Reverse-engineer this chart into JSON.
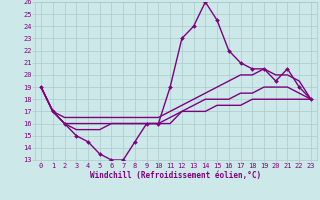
{
  "xlabel": "Windchill (Refroidissement éolien,°C)",
  "x": [
    0,
    1,
    2,
    3,
    4,
    5,
    6,
    7,
    8,
    9,
    10,
    11,
    12,
    13,
    14,
    15,
    16,
    17,
    18,
    19,
    20,
    21,
    22,
    23
  ],
  "lines": [
    {
      "y": [
        19,
        17,
        16,
        15,
        14.5,
        13.5,
        13,
        13,
        14.5,
        16,
        16,
        19,
        23,
        24,
        26,
        24.5,
        22,
        21,
        20.5,
        20.5,
        19.5,
        20.5,
        19,
        18
      ],
      "color": "#800080",
      "marker": "D",
      "markersize": 2.0,
      "linewidth": 1.0,
      "zorder": 5
    },
    {
      "y": [
        19,
        17,
        16.5,
        16.5,
        16.5,
        16.5,
        16.5,
        16.5,
        16.5,
        16.5,
        16.5,
        17,
        17.5,
        18,
        18.5,
        19,
        19.5,
        20,
        20,
        20.5,
        20,
        20,
        19.5,
        18
      ],
      "color": "#800080",
      "marker": null,
      "markersize": 0,
      "linewidth": 1.0,
      "zorder": 4
    },
    {
      "y": [
        19,
        17,
        16,
        15.5,
        15.5,
        15.5,
        16,
        16,
        16,
        16,
        16,
        16.5,
        17,
        17.5,
        18,
        18,
        18,
        18.5,
        18.5,
        19,
        19,
        19,
        18.5,
        18
      ],
      "color": "#800080",
      "marker": null,
      "markersize": 0,
      "linewidth": 1.0,
      "zorder": 3
    },
    {
      "y": [
        19,
        17,
        16,
        16,
        16,
        16,
        16,
        16,
        16,
        16,
        16,
        16,
        17,
        17,
        17,
        17.5,
        17.5,
        17.5,
        18,
        18,
        18,
        18,
        18,
        18
      ],
      "color": "#800080",
      "marker": null,
      "markersize": 0,
      "linewidth": 1.0,
      "zorder": 2
    }
  ],
  "ylim": [
    13,
    26
  ],
  "xlim": [
    -0.5,
    23.5
  ],
  "yticks": [
    13,
    14,
    15,
    16,
    17,
    18,
    19,
    20,
    21,
    22,
    23,
    24,
    25,
    26
  ],
  "xticks": [
    0,
    1,
    2,
    3,
    4,
    5,
    6,
    7,
    8,
    9,
    10,
    11,
    12,
    13,
    14,
    15,
    16,
    17,
    18,
    19,
    20,
    21,
    22,
    23
  ],
  "bg_color": "#cce8e8",
  "grid_color": "#aacccc",
  "line_color": "#800080",
  "tick_color": "#800080",
  "xlabel_fontsize": 5.5,
  "tick_fontsize": 5.0
}
